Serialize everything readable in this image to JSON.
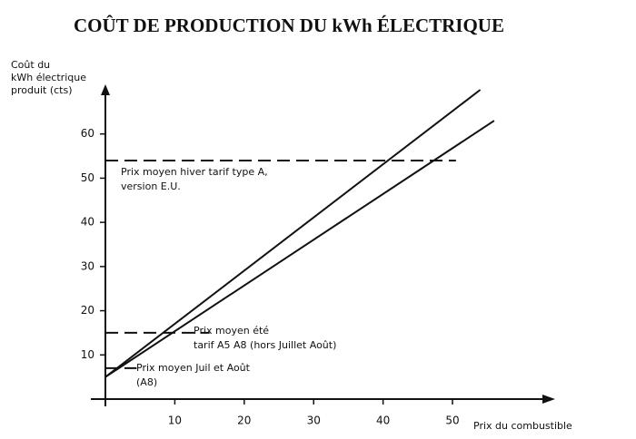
{
  "chart_data": {
    "type": "line",
    "title": "COÛT DE PRODUCTION DU kWh ÉLECTRIQUE",
    "y_label": [
      "Coût du",
      "kWh électrique",
      "produit (cts)"
    ],
    "x_label": "Prix du combustible",
    "xlim": [
      0,
      64
    ],
    "ylim": [
      0,
      70
    ],
    "xticks": [
      10,
      20,
      30,
      40,
      50
    ],
    "yticks": [
      10,
      20,
      30,
      40,
      50,
      60
    ],
    "color": "#111111",
    "series": [
      {
        "x": [
          0,
          54
        ],
        "values": [
          5,
          70
        ]
      },
      {
        "x": [
          0,
          56
        ],
        "values": [
          5,
          63
        ]
      }
    ],
    "reference_lines": [
      {
        "y": 54,
        "x": [
          0,
          50.5
        ],
        "label": [
          "Prix moyen hiver tarif type A,",
          "version E.U."
        ]
      },
      {
        "y": 15,
        "x": [
          0,
          15
        ],
        "label": [
          "Prix moyen été",
          "tarif A5 A8 (hors Juillet Août)"
        ]
      },
      {
        "y": 7,
        "x": [
          0,
          4.5
        ],
        "label": [
          "Prix moyen Juil et Août",
          "(A8)"
        ]
      }
    ]
  }
}
